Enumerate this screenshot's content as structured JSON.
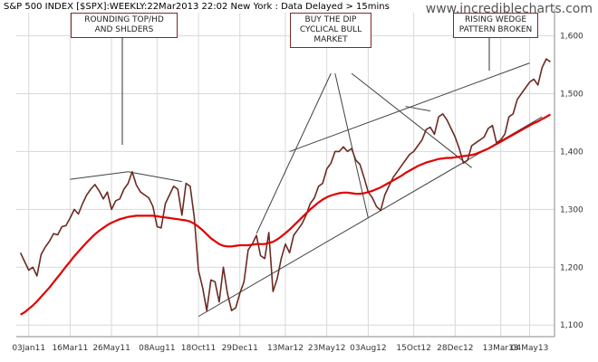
{
  "header": {
    "title": "S&P 500 INDEX [$SPX]:WEEKLY:22Mar2013 22:02 New York : Data Delayed > 15mins",
    "site": "www.incrediblecharts.com"
  },
  "annotations": [
    {
      "id": "rounding",
      "text": "ROUNDING TOP/HD\nAND SHLDERS"
    },
    {
      "id": "dip",
      "text": "BUY THE DIP\nCYCLICAL BULL\nMARKET"
    },
    {
      "id": "wedge",
      "text": "RISING WEDGE\nPATTERN BROKEN"
    }
  ],
  "colors": {
    "price": "#6b2b22",
    "ma": "#e00000",
    "trend": "#404040",
    "grid": "#d8d8d8",
    "box_border": "#7a2a2a"
  },
  "chart_data": {
    "type": "line",
    "title": "S&P 500 INDEX [$SPX]:WEEKLY:22Mar2013 22:02 New York : Data Delayed > 15mins",
    "xlabel": "",
    "ylabel": "",
    "ylim": [
      1080,
      1640
    ],
    "yticks": [
      1100,
      1200,
      1300,
      1400,
      1500,
      1600
    ],
    "ytick_labels": [
      "1,100",
      "1,200",
      "1,300",
      "1,400",
      "1,500",
      "1,600"
    ],
    "xticks": [
      {
        "label": "03Jan11",
        "week": 3
      },
      {
        "label": "16Mar11",
        "week": 13
      },
      {
        "label": "26May11",
        "week": 23
      },
      {
        "label": "08Aug11",
        "week": 34
      },
      {
        "label": "18Oct11",
        "week": 44
      },
      {
        "label": "29Dec11",
        "week": 54
      },
      {
        "label": "13Mar12",
        "week": 65
      },
      {
        "label": "23May12",
        "week": 75
      },
      {
        "label": "03Aug12",
        "week": 85
      },
      {
        "label": "15Oct12",
        "week": 96
      },
      {
        "label": "28Dec12",
        "week": 106
      },
      {
        "label": "13Mar13",
        "week": 117
      },
      {
        "label": "04May13",
        "week": 124
      }
    ],
    "xlim": [
      0,
      130
    ],
    "grid": true,
    "axis_side": "right",
    "series": [
      {
        "kind": "price",
        "values": [
          1225,
          1210,
          1195,
          1200,
          1185,
          1222,
          1235,
          1245,
          1258,
          1256,
          1270,
          1272,
          1285,
          1300,
          1292,
          1310,
          1325,
          1335,
          1343,
          1332,
          1318,
          1330,
          1300,
          1315,
          1318,
          1335,
          1345,
          1365,
          1342,
          1330,
          1325,
          1320,
          1305,
          1270,
          1268,
          1310,
          1325,
          1340,
          1335,
          1290,
          1345,
          1340,
          1285,
          1195,
          1165,
          1125,
          1178,
          1175,
          1140,
          1200,
          1155,
          1125,
          1130,
          1155,
          1175,
          1230,
          1240,
          1255,
          1220,
          1215,
          1260,
          1158,
          1180,
          1215,
          1240,
          1225,
          1255,
          1265,
          1275,
          1290,
          1310,
          1320,
          1340,
          1345,
          1370,
          1380,
          1400,
          1400,
          1408,
          1400,
          1405,
          1385,
          1378,
          1355,
          1330,
          1320,
          1305,
          1298,
          1325,
          1340,
          1355,
          1365,
          1375,
          1385,
          1395,
          1400,
          1410,
          1420,
          1438,
          1442,
          1430,
          1460,
          1465,
          1455,
          1440,
          1425,
          1405,
          1380,
          1385,
          1410,
          1415,
          1420,
          1425,
          1440,
          1445,
          1415,
          1420,
          1430,
          1460,
          1465,
          1490,
          1500,
          1510,
          1520,
          1525,
          1515,
          1545,
          1560,
          1555
        ]
      },
      {
        "kind": "moving_average",
        "values": [
          1118,
          1122,
          1128,
          1134,
          1141,
          1149,
          1157,
          1165,
          1174,
          1183,
          1192,
          1201,
          1210,
          1219,
          1227,
          1235,
          1243,
          1250,
          1257,
          1263,
          1268,
          1273,
          1277,
          1280,
          1283,
          1285,
          1287,
          1288,
          1289,
          1289,
          1289,
          1289,
          1289,
          1288,
          1287,
          1286,
          1285,
          1284,
          1283,
          1282,
          1281,
          1279,
          1275,
          1270,
          1264,
          1257,
          1250,
          1245,
          1240,
          1237,
          1236,
          1236,
          1237,
          1238,
          1238,
          1238,
          1239,
          1240,
          1240,
          1240,
          1242,
          1244,
          1248,
          1253,
          1259,
          1265,
          1272,
          1279,
          1286,
          1293,
          1300,
          1306,
          1312,
          1317,
          1321,
          1324,
          1326,
          1328,
          1329,
          1329,
          1328,
          1327,
          1327,
          1328,
          1330,
          1332,
          1335,
          1338,
          1342,
          1346,
          1350,
          1354,
          1358,
          1363,
          1367,
          1371,
          1375,
          1378,
          1381,
          1383,
          1385,
          1387,
          1388,
          1389,
          1389,
          1390,
          1391,
          1392,
          1393,
          1394,
          1396,
          1399,
          1402,
          1405,
          1409,
          1413,
          1417,
          1421,
          1425,
          1429,
          1433,
          1437,
          1441,
          1445,
          1449,
          1452,
          1456,
          1460,
          1464
        ]
      }
    ],
    "trendlines": [
      {
        "from": [
          13,
          1352
        ],
        "to": [
          27,
          1365
        ]
      },
      {
        "from": [
          27,
          1365
        ],
        "to": [
          40,
          1348
        ]
      },
      {
        "from": [
          44,
          1115
        ],
        "to": [
          127,
          1460
        ]
      },
      {
        "from": [
          66,
          1400
        ],
        "to": [
          124,
          1553
        ]
      },
      {
        "from": [
          58,
          1258
        ],
        "to": [
          76,
          1535
        ]
      },
      {
        "from": [
          77,
          1535
        ],
        "to": [
          85,
          1285
        ]
      },
      {
        "from": [
          81,
          1535
        ],
        "to": [
          110,
          1372
        ]
      },
      {
        "from": [
          94,
          1478
        ],
        "to": [
          100,
          1470
        ]
      }
    ]
  }
}
